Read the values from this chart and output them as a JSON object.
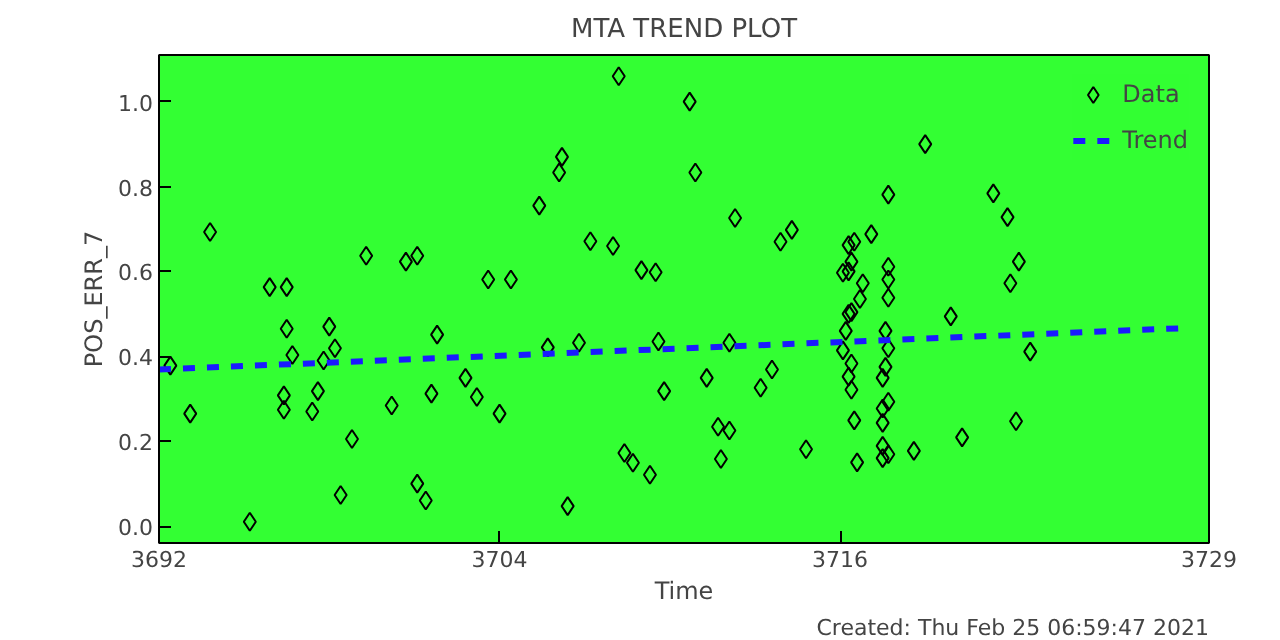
{
  "chart_data": {
    "type": "scatter",
    "title": "MTA TREND PLOT",
    "xlabel": "Time",
    "ylabel": "POS_ERR_7",
    "annotations": [
      "Created: Thu Feb 25 06:59:47 2021"
    ],
    "xlim": [
      3692,
      3729
    ],
    "xticks": [
      3692,
      3704,
      3716,
      3729
    ],
    "ylim": [
      -0.04,
      1.11
    ],
    "yticks": [
      {
        "value": 0,
        "label": "0.0"
      },
      {
        "value": 0.2,
        "label": "0.2"
      },
      {
        "value": 0.4,
        "label": "0.4"
      },
      {
        "value": 0.6,
        "label": "0.6"
      },
      {
        "value": 0.8,
        "label": "0.8"
      },
      {
        "value": 1,
        "label": "1.0"
      }
    ],
    "grid": false,
    "legend": "top right",
    "series": [
      {
        "name": "Data",
        "marker": "diamond",
        "color": "#000000",
        "x": [
          3692.4,
          3693.1,
          3693.8,
          3695.2,
          3695.9,
          3696.5,
          3696.5,
          3696.7,
          3696.4,
          3696.4,
          3697.4,
          3697.6,
          3697.8,
          3698.0,
          3698.2,
          3698.4,
          3698.8,
          3699.3,
          3700.2,
          3700.7,
          3701.1,
          3701.1,
          3701.4,
          3701.6,
          3701.8,
          3702.8,
          3703.2,
          3703.6,
          3704.0,
          3704.4,
          3706.4,
          3705.7,
          3706.8,
          3705.4,
          3706.1,
          3706.2,
          3707.2,
          3708.0,
          3708.2,
          3708.4,
          3708.7,
          3709.3,
          3709.0,
          3709.5,
          3709.6,
          3709.8,
          3710.7,
          3710.9,
          3711.3,
          3711.7,
          3712.1,
          3711.8,
          3712.1,
          3712.3,
          3713.2,
          3713.6,
          3713.9,
          3714.3,
          3714.8,
          3716.5,
          3716.4,
          3716.3,
          3716.8,
          3716.7,
          3716.4,
          3716.2,
          3716.1,
          3716.4,
          3716.3,
          3716.4,
          3716.5,
          3716.6,
          3716.3,
          3716.1,
          3716.3,
          3717.7,
          3717.7,
          3717.7,
          3717.7,
          3717.6,
          3717.7,
          3717.6,
          3717.5,
          3717.7,
          3717.5,
          3717.5,
          3717.5,
          3717.5,
          3717.7,
          3717.1,
          3718.6,
          3719.0,
          3719.9,
          3720.3,
          3721.4,
          3721.9,
          3722.3,
          3722.0,
          3722.7,
          3722.2
        ],
        "values": [
          0.378,
          0.265,
          0.693,
          0.01,
          0.563,
          0.563,
          0.465,
          0.403,
          0.308,
          0.274,
          0.27,
          0.318,
          0.39,
          0.47,
          0.419,
          0.073,
          0.205,
          0.637,
          0.284,
          0.623,
          0.637,
          0.1,
          0.06,
          0.312,
          0.451,
          0.349,
          0.304,
          0.581,
          0.265,
          0.581,
          0.047,
          0.421,
          0.432,
          0.755,
          0.833,
          0.87,
          0.671,
          0.66,
          1.06,
          0.172,
          0.149,
          0.121,
          0.603,
          0.598,
          0.435,
          0.318,
          1.0,
          0.833,
          0.349,
          0.234,
          0.225,
          0.158,
          0.432,
          0.726,
          0.326,
          0.369,
          0.67,
          0.698,
          0.181,
          0.67,
          0.623,
          0.6,
          0.572,
          0.535,
          0.504,
          0.46,
          0.414,
          0.383,
          0.352,
          0.321,
          0.249,
          0.15,
          0.662,
          0.597,
          0.5,
          0.781,
          0.611,
          0.581,
          0.538,
          0.46,
          0.419,
          0.375,
          0.349,
          0.293,
          0.277,
          0.243,
          0.189,
          0.16,
          0.169,
          0.688,
          0.177,
          0.9,
          0.494,
          0.209,
          0.784,
          0.728,
          0.623,
          0.572,
          0.411,
          0.247
        ]
      },
      {
        "name": "Trend",
        "type": "line",
        "line_style": "dashed",
        "color": "#1a1aff",
        "x": [
          3692,
          3728
        ],
        "values": [
          0.369,
          0.466
        ]
      }
    ]
  }
}
